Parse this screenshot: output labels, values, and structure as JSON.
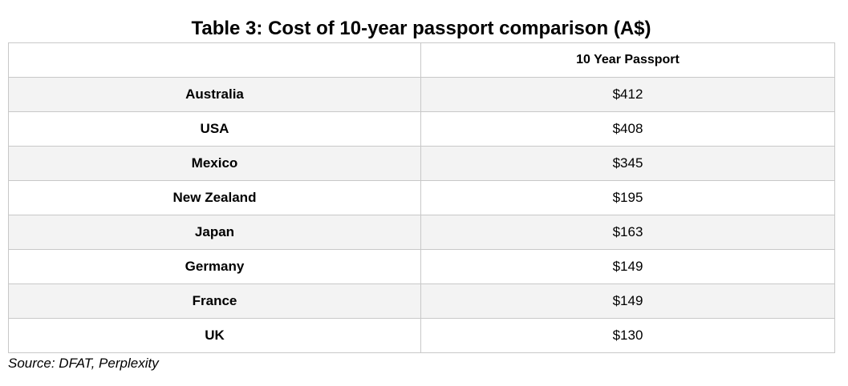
{
  "chart_data": {
    "type": "table",
    "title": "Table 3: Cost of 10-year passport comparison (A$)",
    "columns": [
      "",
      "10 Year Passport"
    ],
    "rows": [
      {
        "country": "Australia",
        "display": "$412",
        "value": 412
      },
      {
        "country": "USA",
        "display": "$408",
        "value": 408
      },
      {
        "country": "Mexico",
        "display": "$345",
        "value": 345
      },
      {
        "country": "New Zealand",
        "display": "$195",
        "value": 195
      },
      {
        "country": "Japan",
        "display": "$163",
        "value": 163
      },
      {
        "country": "Germany",
        "display": "$149",
        "value": 149
      },
      {
        "country": "France",
        "display": "$149",
        "value": 149
      },
      {
        "country": "UK",
        "display": "$130",
        "value": 130
      }
    ],
    "source": "Source: DFAT, Perplexity"
  },
  "colors": {
    "border": "#c8c8c8",
    "stripe": "#f3f3f3",
    "background": "#ffffff"
  }
}
